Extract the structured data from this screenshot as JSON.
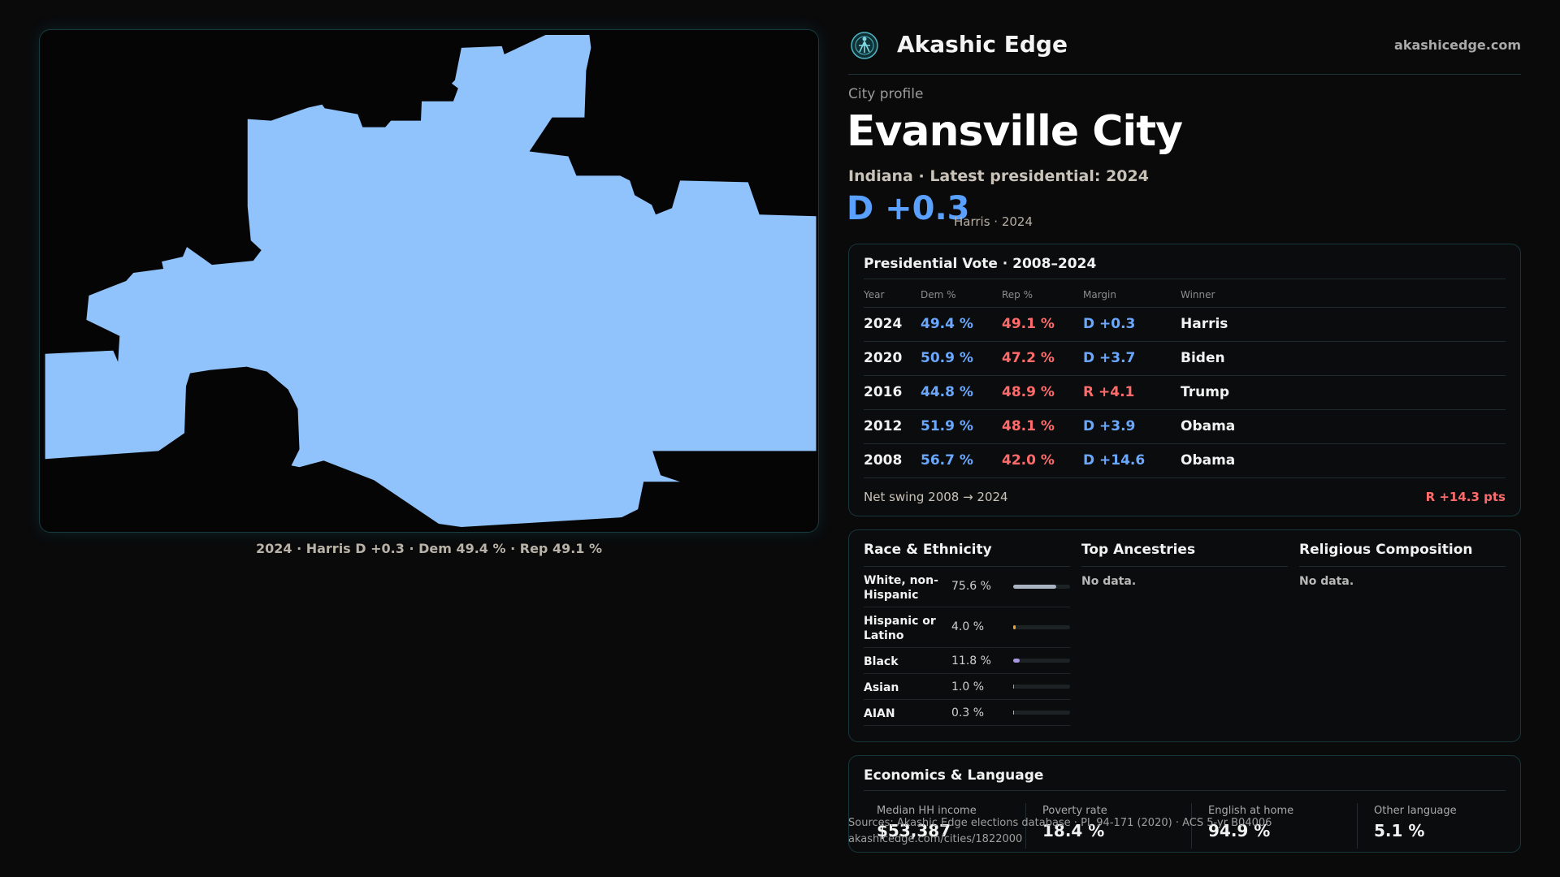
{
  "brand": {
    "name": "Akashic Edge",
    "site": "akashicedge.com"
  },
  "profile": {
    "eyebrow": "City profile",
    "city": "Evansville City",
    "subtitle": "Indiana · Latest presidential: 2024",
    "margin": "D +0.3",
    "margin_note": "Harris · 2024"
  },
  "map": {
    "caption": "2024 · Harris D +0.3 · Dem 49.4 % · Rep 49.1 %",
    "fill_color": "#90c2fb"
  },
  "vote": {
    "title": "Presidential Vote · 2008–2024",
    "headers": {
      "year": "Year",
      "dem": "Dem %",
      "rep": "Rep %",
      "margin": "Margin",
      "winner": "Winner"
    },
    "rows": [
      {
        "year": "2024",
        "dem": "49.4 %",
        "rep": "49.1 %",
        "margin": "D +0.3",
        "party": "D",
        "winner": "Harris"
      },
      {
        "year": "2020",
        "dem": "50.9 %",
        "rep": "47.2 %",
        "margin": "D +3.7",
        "party": "D",
        "winner": "Biden"
      },
      {
        "year": "2016",
        "dem": "44.8 %",
        "rep": "48.9 %",
        "margin": "R +4.1",
        "party": "R",
        "winner": "Trump"
      },
      {
        "year": "2012",
        "dem": "51.9 %",
        "rep": "48.1 %",
        "margin": "D +3.9",
        "party": "D",
        "winner": "Obama"
      },
      {
        "year": "2008",
        "dem": "56.7 %",
        "rep": "42.0 %",
        "margin": "D +14.6",
        "party": "D",
        "winner": "Obama"
      }
    ],
    "swing_label": "Net swing 2008 → 2024",
    "swing_value": "R +14.3 pts"
  },
  "race": {
    "title": "Race & Ethnicity",
    "rows": [
      {
        "name": "White, non-Hispanic",
        "pct": "75.6 %",
        "value": 75.6,
        "color": "#a9b3c2"
      },
      {
        "name": "Hispanic or Latino",
        "pct": "4.0 %",
        "value": 4.0,
        "color": "#e8a33b"
      },
      {
        "name": "Black",
        "pct": "11.8 %",
        "value": 11.8,
        "color": "#a796e0"
      },
      {
        "name": "Asian",
        "pct": "1.0 %",
        "value": 1.0,
        "color": "#6fb5c9"
      },
      {
        "name": "AIAN",
        "pct": "0.3 %",
        "value": 0.3,
        "color": "#9bc77a"
      }
    ]
  },
  "ancestries": {
    "title": "Top Ancestries",
    "empty": "No data."
  },
  "religion": {
    "title": "Religious Composition",
    "empty": "No data."
  },
  "economics": {
    "title": "Economics & Language",
    "stats": [
      {
        "label": "Median HH income",
        "value": "$53,387"
      },
      {
        "label": "Poverty rate",
        "value": "18.4 %"
      },
      {
        "label": "English at home",
        "value": "94.9 %"
      },
      {
        "label": "Other language",
        "value": "5.1 %"
      }
    ]
  },
  "footer": {
    "sources": "Sources: Akashic Edge elections database · PL 94-171 (2020) · ACS 5-yr B04006",
    "url": "akashicedge.com/cities/1822000"
  }
}
